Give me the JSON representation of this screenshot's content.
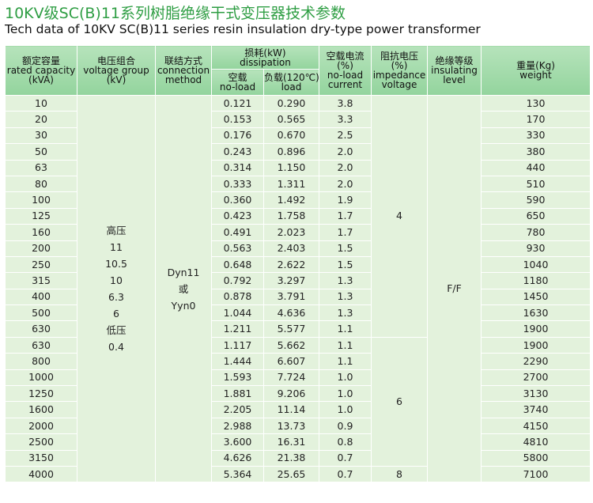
{
  "header": {
    "title": "10KV级SC(B)11系列树脂绝缘干式变压器技术参数",
    "subtitle": "Tech data of 10KV SC(B)11 series resin insulation dry-type power transformer"
  },
  "table": {
    "headers": {
      "capacity": [
        "额定容量",
        "rated capacity",
        "(kVA)"
      ],
      "voltage": [
        "电压组合",
        "voltage group",
        "(kV)"
      ],
      "connection": [
        "联结方式",
        "connection",
        "method"
      ],
      "dissipation": [
        "损耗(kW)",
        "dissipation"
      ],
      "no_load": [
        "空载",
        "no-load"
      ],
      "load": [
        "负载(120℃)",
        "load"
      ],
      "current": [
        "空载电流",
        "(%)",
        "no-load",
        "current"
      ],
      "impedance": [
        "阻抗电压",
        "(%)",
        "impedance",
        "voltage"
      ],
      "insulating": [
        "绝缘等级",
        "insulating",
        "level"
      ],
      "weight": [
        "重量(Kg)",
        "weight"
      ]
    },
    "rows": [
      [
        "10",
        "0.121",
        "0.290",
        "3.8",
        "130"
      ],
      [
        "20",
        "0.153",
        "0.565",
        "3.3",
        "170"
      ],
      [
        "30",
        "0.176",
        "0.670",
        "2.5",
        "330"
      ],
      [
        "50",
        "0.243",
        "0.896",
        "2.0",
        "380"
      ],
      [
        "63",
        "0.314",
        "1.150",
        "2.0",
        "440"
      ],
      [
        "80",
        "0.333",
        "1.311",
        "2.0",
        "510"
      ],
      [
        "100",
        "0.360",
        "1.492",
        "1.9",
        "590"
      ],
      [
        "125",
        "0.423",
        "1.758",
        "1.7",
        "650"
      ],
      [
        "160",
        "0.491",
        "2.023",
        "1.7",
        "780"
      ],
      [
        "200",
        "0.563",
        "2.403",
        "1.5",
        "930"
      ],
      [
        "250",
        "0.648",
        "2.622",
        "1.5",
        "1040"
      ],
      [
        "315",
        "0.792",
        "3.297",
        "1.3",
        "1180"
      ],
      [
        "400",
        "0.878",
        "3.791",
        "1.3",
        "1450"
      ],
      [
        "500",
        "1.044",
        "4.636",
        "1.3",
        "1630"
      ],
      [
        "630",
        "1.211",
        "5.577",
        "1.1",
        "1900"
      ],
      [
        "630",
        "1.117",
        "5.662",
        "1.1",
        "1900"
      ],
      [
        "800",
        "1.444",
        "6.607",
        "1.1",
        "2290"
      ],
      [
        "1000",
        "1.593",
        "7.724",
        "1.0",
        "2700"
      ],
      [
        "1250",
        "1.881",
        "9.206",
        "1.0",
        "3130"
      ],
      [
        "1600",
        "2.205",
        "11.14",
        "1.0",
        "3740"
      ],
      [
        "2000",
        "2.988",
        "13.73",
        "0.9",
        "4150"
      ],
      [
        "2500",
        "3.600",
        "16.31",
        "0.8",
        "4810"
      ],
      [
        "3150",
        "4.626",
        "21.38",
        "0.7",
        "5800"
      ],
      [
        "4000",
        "5.364",
        "25.65",
        "0.7",
        "7100"
      ]
    ],
    "voltage_group": [
      "高压",
      "11",
      "10.5",
      "10",
      "6.3",
      "6",
      "低压",
      "0.4"
    ],
    "connection": [
      "Dyn11",
      "或",
      "Yyn0"
    ],
    "impedance": [
      "4",
      "6",
      "8"
    ],
    "insulating": "F/F"
  }
}
